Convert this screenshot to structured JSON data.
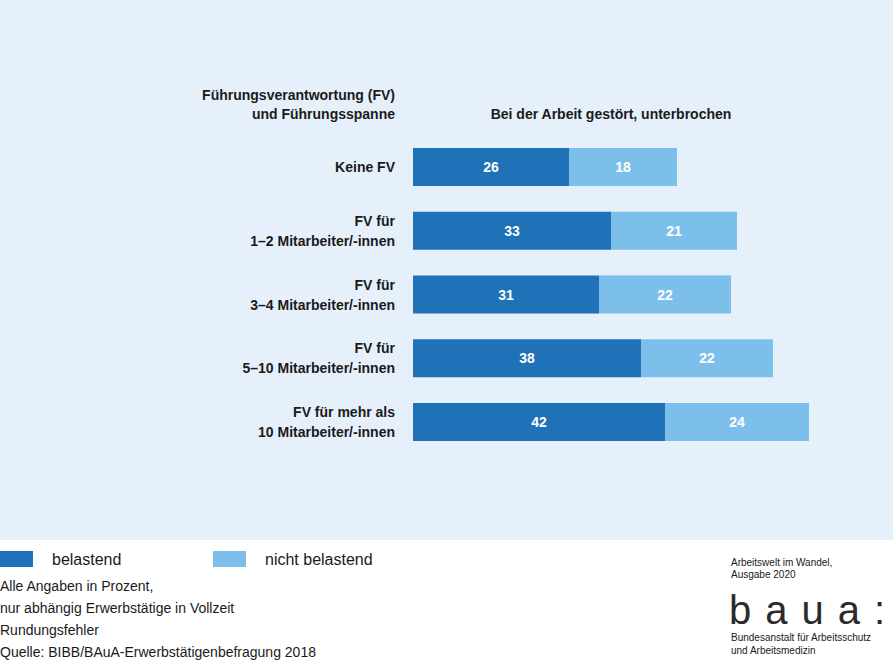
{
  "chart_data": {
    "type": "bar",
    "orientation": "horizontal",
    "stacked": true,
    "data_labels": true,
    "tick_labels": "y",
    "legend": "bottom-left",
    "title": "Bei der Arbeit gestört, unterbrochen",
    "ylabel": "Führungsverantwortung (FV)\nund Führungsspanne",
    "categories": [
      "Keine FV",
      "FV für\n1–2 Mitarbeiter/-innen",
      "FV für\n3–4 Mitarbeiter/-innen",
      "FV für\n5–10 Mitarbeiter/-innen",
      "FV für mehr als\n10 Mitarbeiter/-innen"
    ],
    "xlim": [
      0,
      66
    ],
    "series": [
      {
        "name": "belastend",
        "color": "#1f71b8",
        "values": [
          26,
          33,
          31,
          38,
          42
        ]
      },
      {
        "name": "nicht belastend",
        "color": "#7bbfea",
        "values": [
          18,
          21,
          22,
          22,
          24
        ]
      }
    ],
    "notes": [
      "Alle Angaben in Prozent,",
      "nur abhängig Erwerbstätige in Vollzeit",
      "Rundungsfehler",
      "Quelle: BIBB/BAuA-Erwerbstätigenbefragung 2018"
    ],
    "branding": {
      "publication": "Arbeitswelt im Wandel,\nAusgabe 2020",
      "logo": "baua:",
      "institution": "Bundesanstalt für Arbeitsschutz\nund Arbeitsmedizin"
    }
  }
}
